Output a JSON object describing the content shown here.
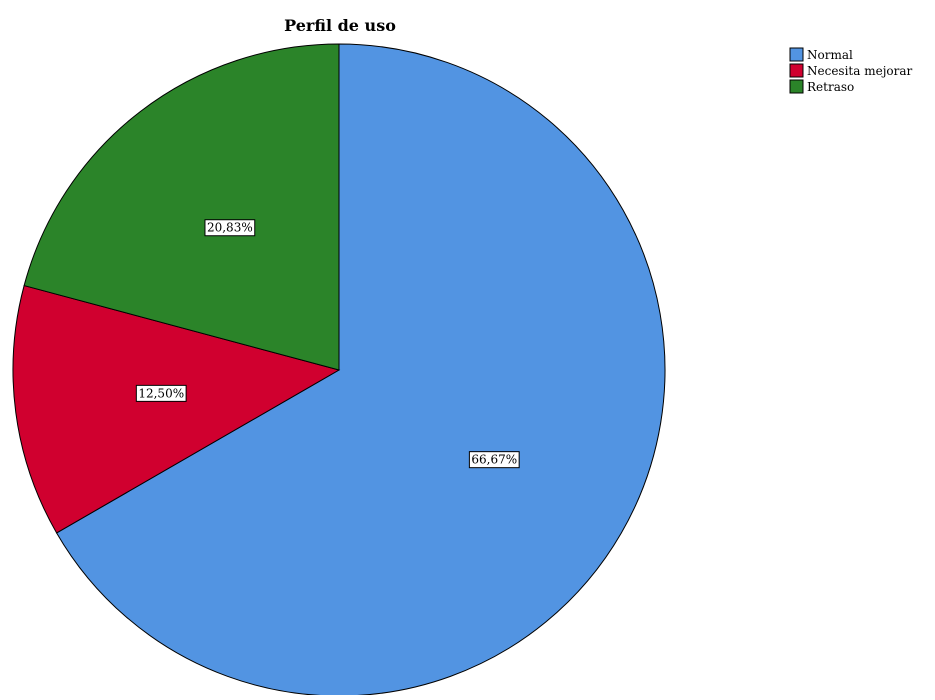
{
  "chart_data": {
    "type": "pie",
    "title": "Perfil de uso",
    "slices": [
      {
        "name": "Normal",
        "value": 66.67,
        "label": "66,67%",
        "color": "#5294e2"
      },
      {
        "name": "Necesita mejorar",
        "value": 12.5,
        "label": "12,50%",
        "color": "#d0002f"
      },
      {
        "name": "Retraso",
        "value": 20.83,
        "label": "20,83%",
        "color": "#2b8429"
      }
    ],
    "start_angle_deg": 0,
    "direction": "clockwise",
    "legend_position": "top-right"
  }
}
